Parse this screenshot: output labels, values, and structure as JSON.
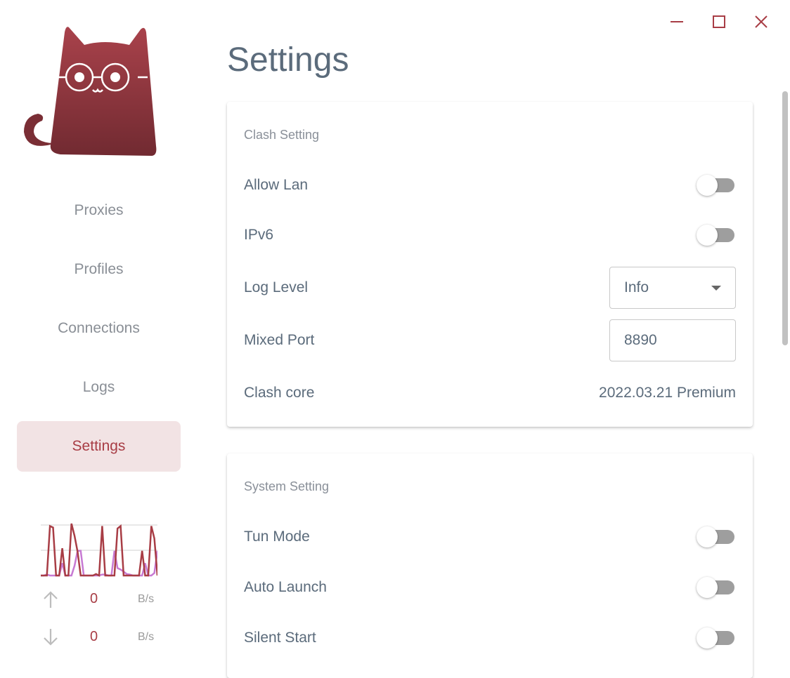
{
  "window": {
    "controls": [
      {
        "icon": "minimize-icon"
      },
      {
        "icon": "maximize-icon"
      },
      {
        "icon": "close-icon"
      }
    ],
    "accent": "#a83d45"
  },
  "sidebar": {
    "logo": "cat-logo",
    "items": [
      {
        "label": "Proxies"
      },
      {
        "label": "Profiles"
      },
      {
        "label": "Connections"
      },
      {
        "label": "Logs"
      },
      {
        "label": "Settings",
        "active": true
      }
    ],
    "traffic": {
      "upload": {
        "value": "0",
        "unit": "B/s",
        "icon": "arrow-up-icon"
      },
      "download": {
        "value": "0",
        "unit": "B/s",
        "icon": "arrow-down-icon"
      },
      "history_primary": [
        0,
        0,
        0,
        100,
        97,
        0,
        0,
        55,
        0,
        0,
        105,
        80,
        48,
        0,
        0,
        0,
        0,
        0,
        3,
        0,
        100,
        0,
        0,
        0,
        0,
        95,
        100,
        0,
        0,
        0,
        0,
        0,
        0,
        50,
        0,
        0,
        100,
        75,
        0
      ],
      "history_secondary": [
        0,
        0,
        2,
        0,
        0,
        0,
        0,
        25,
        0,
        0,
        0,
        20,
        50,
        50,
        0,
        0,
        0,
        0,
        0,
        0,
        2,
        2,
        0,
        0,
        50,
        15,
        12,
        8,
        3,
        2,
        0,
        0,
        0,
        0,
        25,
        0,
        0,
        5,
        50
      ],
      "colors": {
        "primary": "#a83d45",
        "secondary": "#c77ad3"
      }
    }
  },
  "main": {
    "title": "Settings",
    "clash": {
      "title": "Clash Setting",
      "allow_lan": {
        "label": "Allow Lan",
        "on": false
      },
      "ipv6": {
        "label": "IPv6",
        "on": false
      },
      "log_level": {
        "label": "Log Level",
        "value": "Info"
      },
      "mixed_port": {
        "label": "Mixed Port",
        "value": "8890"
      },
      "core": {
        "label": "Clash core",
        "value": "2022.03.21 Premium"
      }
    },
    "system": {
      "title": "System Setting",
      "tun": {
        "label": "Tun Mode",
        "on": false
      },
      "auto_launch": {
        "label": "Auto Launch",
        "on": false
      },
      "silent_start": {
        "label": "Silent Start",
        "on": false
      }
    }
  }
}
